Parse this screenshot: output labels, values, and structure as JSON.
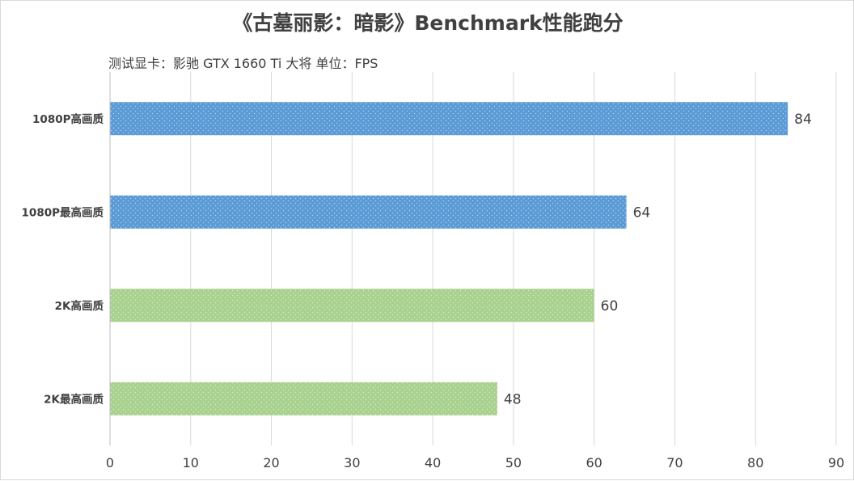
{
  "chart_data": {
    "type": "bar",
    "orientation": "horizontal",
    "title": "《古墓丽影：暗影》Benchmark性能跑分",
    "subtitle": "测试显卡：影驰 GTX 1660 Ti 大将   单位：FPS",
    "categories": [
      "1080P高画质",
      "1080P最高画质",
      "2K高画质",
      "2K最高画质"
    ],
    "values": [
      84,
      64,
      60,
      48
    ],
    "bar_colors": [
      "#5b9bd5",
      "#5b9bd5",
      "#a9d18e",
      "#a9d18e"
    ],
    "xlim": [
      0,
      90
    ],
    "xticks": [
      "0",
      "10",
      "20",
      "30",
      "40",
      "50",
      "60",
      "70",
      "80",
      "90"
    ],
    "grid": "vertical",
    "data_labels": true
  },
  "colors": {
    "text": "#404040",
    "grid": "#d9d9d9",
    "axis": "#bfbfbf"
  }
}
